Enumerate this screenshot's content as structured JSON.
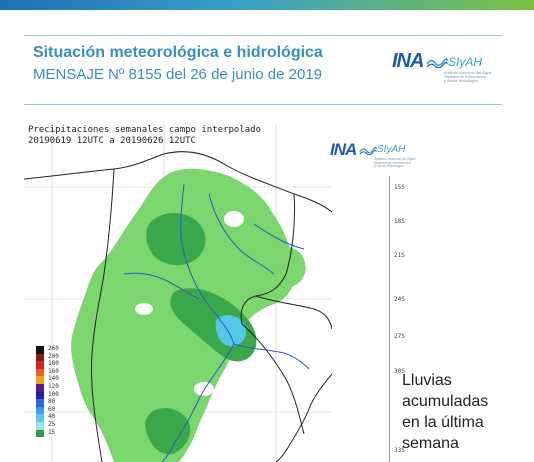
{
  "header": {
    "title": "Situación meteorológica e hidrológica",
    "subtitle": "MENSAJE Nº 8155 del 26 de junio de 2019"
  },
  "logo": {
    "ina": "INA",
    "slyah": "SIyAH",
    "subtext_lines": [
      "Instituto Nacional del Agua",
      "Sistema de Información",
      "y Alerta Hidrológico"
    ]
  },
  "map": {
    "title_line1": "Precipitaciones semanales campo interpolado",
    "title_line2": "20190619 12UTC a 20190626 12UTC",
    "lat_ticks": [
      "15S",
      "18S",
      "21S",
      "24S",
      "27S",
      "30S",
      "33S"
    ],
    "colors": {
      "land_background": "#ffffff",
      "light_green": "#7bd66e",
      "dark_green": "#3aa84a",
      "cyan": "#55c8e8",
      "river": "#3355cc",
      "border": "#222222"
    }
  },
  "legend": [
    {
      "label": "260",
      "color": "#111111"
    },
    {
      "label": "200",
      "color": "#8b1a1a"
    },
    {
      "label": "180",
      "color": "#d42222"
    },
    {
      "label": "160",
      "color": "#f06020"
    },
    {
      "label": "140",
      "color": "#f0a020"
    },
    {
      "label": "120",
      "color": "#5a1a8a"
    },
    {
      "label": "100",
      "color": "#2020a0"
    },
    {
      "label": "80",
      "color": "#2a6ad8"
    },
    {
      "label": "60",
      "color": "#4a9ae8"
    },
    {
      "label": "40",
      "color": "#5ac8e8"
    },
    {
      "label": "25",
      "color": "#a0e0f0"
    },
    {
      "label": "15",
      "color": "#2a9a3a"
    }
  ],
  "caption": {
    "lines": [
      "Lluvias",
      "acumuladas",
      "en la última",
      "semana"
    ]
  }
}
